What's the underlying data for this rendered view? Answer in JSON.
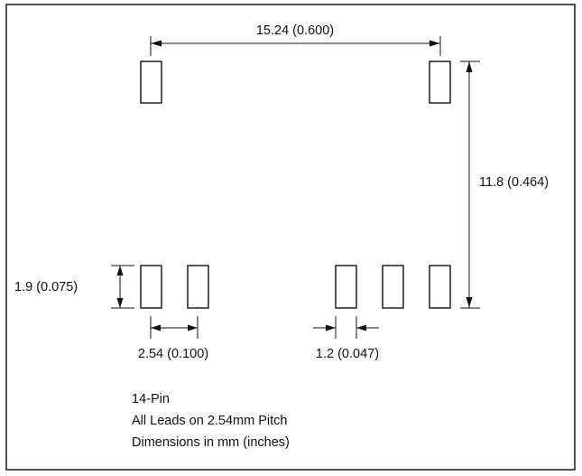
{
  "dimensions": {
    "row_spacing": "15.24 (0.600)",
    "pad_span": "11.8 (0.464)",
    "pad_length": "1.9 (0.075)",
    "pitch": "2.54 (0.100)",
    "pad_width": "1.2 (0.047)"
  },
  "notes": [
    "14-Pin",
    "All Leads on 2.54mm Pitch",
    "Dimensions in mm (inches)"
  ]
}
